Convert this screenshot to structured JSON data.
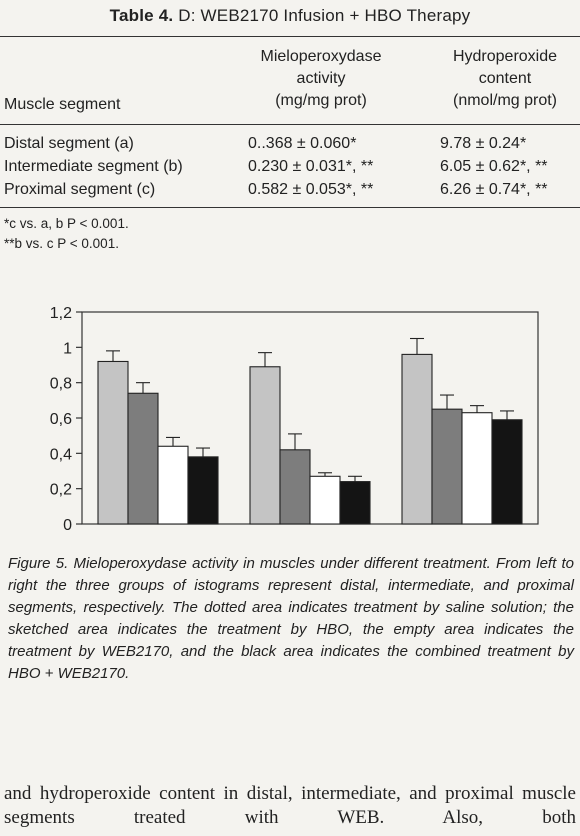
{
  "table": {
    "label": "Table 4.",
    "title": "D: WEB2170 Infusion + HBO Therapy",
    "col_headers": {
      "segment": "Muscle segment",
      "mpo": [
        "Mieloperoxydase",
        "activity",
        "(mg/mg prot)"
      ],
      "hydro": [
        "Hydroperoxide",
        "content",
        "(nmol/mg prot)"
      ]
    },
    "rows": [
      {
        "segment": "Distal segment (a)",
        "mpo": "0..368 ± 0.060*",
        "hydro": "9.78 ± 0.24*"
      },
      {
        "segment": "Intermediate segment (b)",
        "mpo": "0.230 ± 0.031*, **",
        "hydro": "6.05 ± 0.62*, **"
      },
      {
        "segment": "Proximal segment (c)",
        "mpo": "0.582 ± 0.053*, **",
        "hydro": "6.26 ± 0.74*, **"
      }
    ],
    "footnotes": [
      "*c vs. a, b P < 0.001.",
      "**b vs. c P < 0.001."
    ]
  },
  "chart_data": {
    "type": "bar",
    "title": "",
    "xlabel": "",
    "ylabel": "",
    "ylim": [
      0,
      1.2
    ],
    "yticks": [
      "0",
      "0,2",
      "0,4",
      "0,6",
      "0,8",
      "1",
      "1,2"
    ],
    "grid": false,
    "legend": "none",
    "categories": [
      "distal",
      "intermediate",
      "proximal"
    ],
    "series": [
      {
        "values": [
          0.92,
          0.89,
          0.96
        ],
        "errors": [
          0.06,
          0.08,
          0.09
        ],
        "color": "#c4c4c4"
      },
      {
        "values": [
          0.74,
          0.42,
          0.65
        ],
        "errors": [
          0.06,
          0.09,
          0.08
        ],
        "color": "#7d7d7d"
      },
      {
        "values": [
          0.44,
          0.27,
          0.63
        ],
        "errors": [
          0.05,
          0.02,
          0.04
        ],
        "color": "#ffffff"
      },
      {
        "values": [
          0.38,
          0.24,
          0.59
        ],
        "errors": [
          0.05,
          0.03,
          0.05
        ],
        "color": "#141414"
      }
    ]
  },
  "caption": "Figure 5. Mieloperoxydase activity in muscles under different treatment. From left to right the three groups of istograms represent distal, intermediate, and proximal segments, respectively. The dotted area indicates treatment by saline solution; the sketched area indicates the treatment by HBO, the empty area indicates the treatment by WEB2170, and the black area indicates the combined treatment by HBO + WEB2170.",
  "body_text": "and hydroperoxide content in distal, intermediate, and proximal muscle segments treated with WEB. Also, both"
}
